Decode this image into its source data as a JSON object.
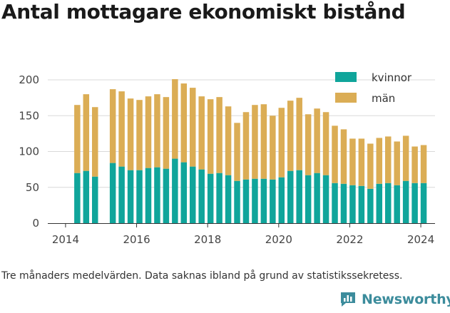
{
  "title": "Antal mottagare ekonomiskt bistånd",
  "caption": "Tre månaders medelvärden. Data saknas ibland på grund av statistikssekretess.",
  "brand": {
    "name": "Newsworthy",
    "logo_icon": "bar-chart-speech-bubble-icon",
    "color": "#3c8c9c"
  },
  "colors": {
    "kvinnor": "#10a59b",
    "man": "#dbad55",
    "grid": "#d9d9d9",
    "axis": "#333333"
  },
  "legend": [
    {
      "label": "kvinnor",
      "color": "#10a59b"
    },
    {
      "label": "män",
      "color": "#dbad55"
    }
  ],
  "chart_data": {
    "type": "bar",
    "stacked": true,
    "x_ticks": [
      "2014",
      "2016",
      "2018",
      "2020",
      "2022",
      "2024"
    ],
    "y_ticks": [
      0,
      50,
      100,
      150,
      200
    ],
    "ylim": [
      0,
      210
    ],
    "xlim": [
      2013.5,
      2024.4
    ],
    "grid": true,
    "legend_position": "top-right",
    "x": [
      2014.33,
      2014.58,
      2014.83,
      2015.33,
      2015.58,
      2015.83,
      2016.08,
      2016.33,
      2016.58,
      2016.83,
      2017.08,
      2017.33,
      2017.58,
      2017.83,
      2018.08,
      2018.33,
      2018.58,
      2018.83,
      2019.08,
      2019.33,
      2019.58,
      2019.83,
      2020.08,
      2020.33,
      2020.58,
      2020.83,
      2021.08,
      2021.33,
      2021.58,
      2021.83,
      2022.08,
      2022.33,
      2022.58,
      2022.83,
      2023.08,
      2023.33,
      2023.58,
      2023.83,
      2024.08
    ],
    "series": [
      {
        "name": "kvinnor",
        "values": [
          70,
          73,
          65,
          84,
          79,
          74,
          74,
          77,
          78,
          76,
          90,
          85,
          79,
          75,
          69,
          70,
          67,
          59,
          61,
          62,
          62,
          61,
          64,
          73,
          74,
          67,
          70,
          67,
          56,
          55,
          53,
          52,
          48,
          55,
          56,
          53,
          59,
          56,
          56
        ]
      },
      {
        "name": "män",
        "values": [
          95,
          107,
          97,
          103,
          105,
          100,
          98,
          100,
          102,
          100,
          111,
          110,
          110,
          102,
          104,
          106,
          96,
          81,
          94,
          103,
          104,
          89,
          97,
          98,
          101,
          85,
          90,
          88,
          80,
          76,
          65,
          66,
          63,
          64,
          65,
          61,
          63,
          51,
          53
        ]
      }
    ]
  }
}
